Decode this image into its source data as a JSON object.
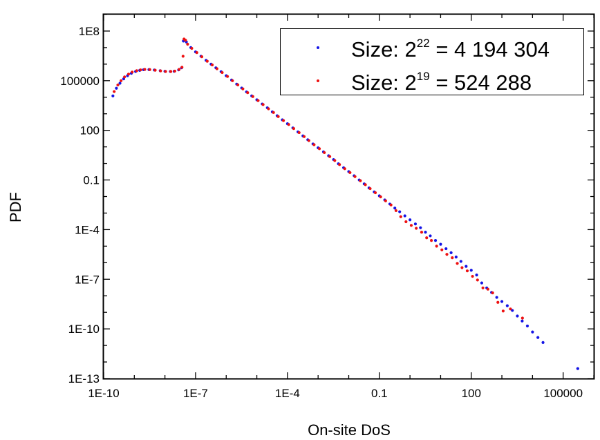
{
  "chart_data": {
    "type": "scatter",
    "title": "",
    "xlabel": "On-site DoS",
    "ylabel": "PDF",
    "x_scale": "log",
    "y_scale": "log",
    "xlim": [
      1e-10,
      1000000.0
    ],
    "ylim": [
      1e-13,
      1000000000.0
    ],
    "x_ticks": [
      {
        "value": 1e-10,
        "label": "1E-10"
      },
      {
        "value": 1e-07,
        "label": "1E-7"
      },
      {
        "value": 0.0001,
        "label": "1E-4"
      },
      {
        "value": 0.1,
        "label": "0.1"
      },
      {
        "value": 100,
        "label": "100"
      },
      {
        "value": 100000,
        "label": "100000"
      }
    ],
    "y_ticks": [
      {
        "value": 1e-13,
        "label": "1E-13"
      },
      {
        "value": 1e-10,
        "label": "1E-10"
      },
      {
        "value": 1e-07,
        "label": "1E-7"
      },
      {
        "value": 0.0001,
        "label": "1E-4"
      },
      {
        "value": 0.1,
        "label": "0.1"
      },
      {
        "value": 100,
        "label": "100"
      },
      {
        "value": 100000,
        "label": "100000"
      },
      {
        "value": 100000000.0,
        "label": "1E8"
      }
    ],
    "grid": false,
    "legend_position": "top-right",
    "series": [
      {
        "name": "Size: 2^22 = 4 194 304",
        "legend": {
          "base": "Size: 2",
          "exp": "22",
          "rest": " = 4 194 304"
        },
        "color": "#1414e6",
        "marker": "dot",
        "points": [
          [
            2e-10,
            12000.0
          ],
          [
            2.6e-10,
            35000.0
          ],
          [
            3.4e-10,
            70000.0
          ],
          [
            4.5e-10,
            130000.0
          ],
          [
            6e-10,
            200000.0
          ],
          [
            8e-10,
            280000.0
          ],
          [
            1.1e-09,
            360000.0
          ],
          [
            1.5e-09,
            420000.0
          ],
          [
            2e-09,
            460000.0
          ],
          [
            3e-09,
            470000.0
          ],
          [
            4.5e-09,
            440000.0
          ],
          [
            7e-09,
            400000.0
          ],
          [
            1e-08,
            370000.0
          ],
          [
            1.5e-08,
            360000.0
          ],
          [
            2e-08,
            370000.0
          ],
          [
            2.8e-08,
            450000.0
          ],
          [
            3.5e-08,
            600000.0
          ],
          [
            4e-08,
            25000000.0
          ],
          [
            5e-08,
            22000000.0
          ],
          [
            7e-08,
            10000000.0
          ],
          [
            1e-07,
            5500000.0
          ],
          [
            1.5e-07,
            3000000.0
          ],
          [
            2.2e-07,
            1700000.0
          ],
          [
            3.2e-07,
            1000000.0
          ],
          [
            4.6e-07,
            600000.0
          ],
          [
            6.8e-07,
            350000.0
          ],
          [
            1e-06,
            200000.0
          ],
          [
            1.5e-06,
            110000.0
          ],
          [
            2.2e-06,
            62000.0
          ],
          [
            3.2e-06,
            36000.0
          ],
          [
            4.6e-06,
            21000.0
          ],
          [
            6.8e-06,
            12000.0
          ],
          [
            1e-05,
            7000.0
          ],
          [
            1.5e-05,
            3900.0
          ],
          [
            2.2e-05,
            2300.0
          ],
          [
            3.2e-05,
            1300.0
          ],
          [
            4.6e-05,
            760
          ],
          [
            6.8e-05,
            430
          ],
          [
            0.0001,
            250
          ],
          [
            0.00015,
            140
          ],
          [
            0.00022,
            80
          ],
          [
            0.00032,
            46
          ],
          [
            0.00046,
            27
          ],
          [
            0.00068,
            15
          ],
          [
            0.001,
            8.8
          ],
          [
            0.0015,
            5
          ],
          [
            0.0022,
            2.9
          ],
          [
            0.0032,
            1.7
          ],
          [
            0.0046,
            0.95
          ],
          [
            0.0068,
            0.55
          ],
          [
            0.01,
            0.32
          ],
          [
            0.015,
            0.18
          ],
          [
            0.022,
            0.1
          ],
          [
            0.032,
            0.058
          ],
          [
            0.046,
            0.033
          ],
          [
            0.068,
            0.019
          ],
          [
            0.1,
            0.011
          ],
          [
            0.15,
            0.0062
          ],
          [
            0.22,
            0.0035
          ],
          [
            0.32,
            0.002
          ],
          [
            0.46,
            0.0012
          ],
          [
            0.68,
            0.00068
          ],
          [
            1,
            0.00039
          ],
          [
            1.5,
            0.00022
          ],
          [
            2.2,
            0.00013
          ],
          [
            3.2,
            7e-05
          ],
          [
            4.6,
            4.2e-05
          ],
          [
            6.8,
            2.2e-05
          ],
          [
            10,
            1.3e-05
          ],
          [
            15,
            7e-06
          ],
          [
            22,
            4e-06
          ],
          [
            32,
            2.2e-06
          ],
          [
            46,
            1.2e-06
          ],
          [
            68,
            6e-07
          ],
          [
            100,
            3.5e-07
          ],
          [
            150,
            1.8e-07
          ],
          [
            220,
            6e-08
          ],
          [
            320,
            3e-08
          ],
          [
            460,
            1.6e-08
          ],
          [
            680,
            8e-09
          ],
          [
            1000,
            4.5e-09
          ],
          [
            1500,
            2.5e-09
          ],
          [
            2200,
            1.3e-09
          ],
          [
            3200,
            6e-10
          ],
          [
            4600,
            3e-10
          ],
          [
            6800,
            1.5e-10
          ],
          [
            10000,
            6.5e-11
          ],
          [
            15000,
            3e-11
          ],
          [
            22000,
            1.5e-11
          ],
          [
            300000.0,
            4e-13
          ]
        ]
      },
      {
        "name": "Size: 2^19 = 524 288",
        "legend": {
          "base": "Size: 2",
          "exp": "19",
          "rest": " = 524 288"
        },
        "color": "#ee1111",
        "marker": "dot",
        "points": [
          [
            2.2e-10,
            22000.0
          ],
          [
            2.9e-10,
            55000.0
          ],
          [
            3.7e-10,
            100000.0
          ],
          [
            4.8e-10,
            170000.0
          ],
          [
            6.5e-10,
            250000.0
          ],
          [
            8.5e-10,
            330000.0
          ],
          [
            1.2e-09,
            400000.0
          ],
          [
            1.6e-09,
            450000.0
          ],
          [
            2.2e-09,
            480000.0
          ],
          [
            3.2e-09,
            470000.0
          ],
          [
            4.8e-09,
            430000.0
          ],
          [
            7.2e-09,
            390000.0
          ],
          [
            1.05e-08,
            360000.0
          ],
          [
            1.55e-08,
            360000.0
          ],
          [
            2.1e-08,
            380000.0
          ],
          [
            2.9e-08,
            480000.0
          ],
          [
            3.6e-08,
            650000.0
          ],
          [
            3.9e-08,
            3000000.0
          ],
          [
            4.2e-08,
            33000000.0
          ],
          [
            4.7e-08,
            28000000.0
          ],
          [
            5.5e-08,
            16000000.0
          ],
          [
            7.5e-08,
            9000000.0
          ],
          [
            1.1e-07,
            5000000.0
          ],
          [
            1.6e-07,
            2800000.0
          ],
          [
            2.4e-07,
            1500000.0
          ],
          [
            3.5e-07,
            900000.0
          ],
          [
            5e-07,
            530000.0
          ],
          [
            7.4e-07,
            310000.0
          ],
          [
            1.1e-06,
            180000.0
          ],
          [
            1.6e-06,
            100000.0
          ],
          [
            2.4e-06,
            56000.0
          ],
          [
            3.5e-06,
            32000.0
          ],
          [
            5e-06,
            19000.0
          ],
          [
            7.4e-06,
            11000.0
          ],
          [
            1.1e-05,
            6300.0
          ],
          [
            1.6e-05,
            3600.0
          ],
          [
            2.4e-05,
            2000.0
          ],
          [
            3.5e-05,
            1200.0
          ],
          [
            5e-05,
            680
          ],
          [
            7.4e-05,
            390
          ],
          [
            0.00011,
            225
          ],
          [
            0.00016,
            128
          ],
          [
            0.00024,
            73
          ],
          [
            0.00035,
            42
          ],
          [
            0.0005,
            24
          ],
          [
            0.00074,
            13.5
          ],
          [
            0.0011,
            7.8
          ],
          [
            0.0016,
            4.5
          ],
          [
            0.0024,
            2.6
          ],
          [
            0.0035,
            1.5
          ],
          [
            0.005,
            0.85
          ],
          [
            0.0074,
            0.48
          ],
          [
            0.011,
            0.28
          ],
          [
            0.016,
            0.16
          ],
          [
            0.024,
            0.09
          ],
          [
            0.035,
            0.052
          ],
          [
            0.05,
            0.03
          ],
          [
            0.074,
            0.017
          ],
          [
            0.11,
            0.0095
          ],
          [
            0.16,
            0.0055
          ],
          [
            0.24,
            0.0031
          ],
          [
            0.35,
            0.0014
          ],
          [
            0.5,
            0.0006
          ],
          [
            0.74,
            0.0003
          ],
          [
            1.1,
            0.00018
          ],
          [
            1.6,
            0.00012
          ],
          [
            2.4,
            7e-05
          ],
          [
            3.5,
            3.2e-05
          ],
          [
            5,
            2.2e-05
          ],
          [
            7.4,
            1e-05
          ],
          [
            11,
            6e-06
          ],
          [
            16,
            3.2e-06
          ],
          [
            24,
            2e-06
          ],
          [
            35,
            9e-07
          ],
          [
            50,
            5e-07
          ],
          [
            74,
            3.2e-07
          ],
          [
            110,
            1.5e-07
          ],
          [
            160,
            9e-08
          ],
          [
            240,
            3e-08
          ],
          [
            350,
            2.5e-08
          ],
          [
            500,
            1.5e-08
          ],
          [
            740,
            4e-09
          ],
          [
            1100,
            1.2e-09
          ],
          [
            1900,
            1.6e-09
          ],
          [
            4700,
            4.5e-10
          ]
        ]
      }
    ]
  }
}
